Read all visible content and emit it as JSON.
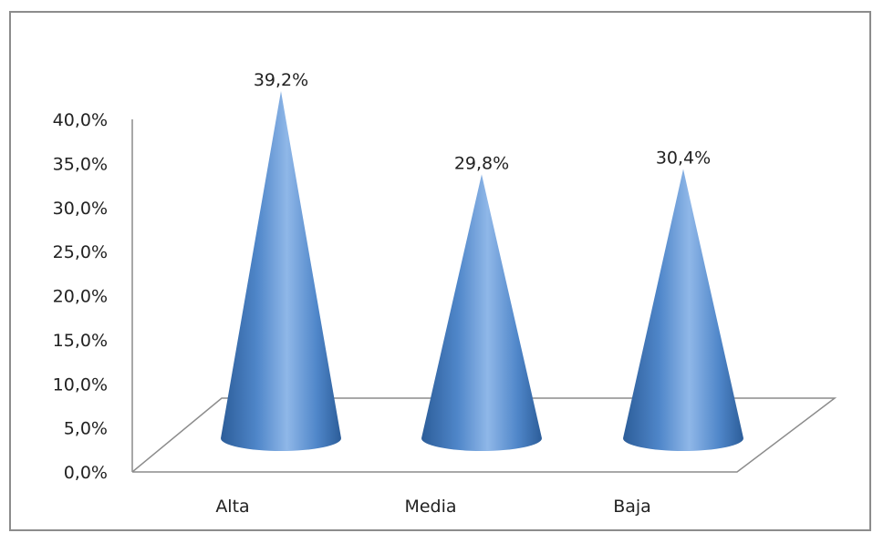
{
  "chart_data": {
    "type": "bar",
    "shape": "cone-3d",
    "categories": [
      "Alta",
      "Media",
      "Baja"
    ],
    "values": [
      39.2,
      29.8,
      30.4
    ],
    "data_labels": [
      "39,2%",
      "29,8%",
      "30,4%"
    ],
    "y_ticks": [
      "0,0%",
      "5,0%",
      "10,0%",
      "15,0%",
      "20,0%",
      "25,0%",
      "30,0%",
      "35,0%",
      "40,0%"
    ],
    "ylim": [
      0,
      40
    ],
    "grid": false,
    "legend": "none",
    "colors": {
      "cone_dark": "#2c5d99",
      "cone_mid": "#4f86c9",
      "cone_light": "#8fb7e8",
      "axis": "#8c8c8c"
    }
  }
}
